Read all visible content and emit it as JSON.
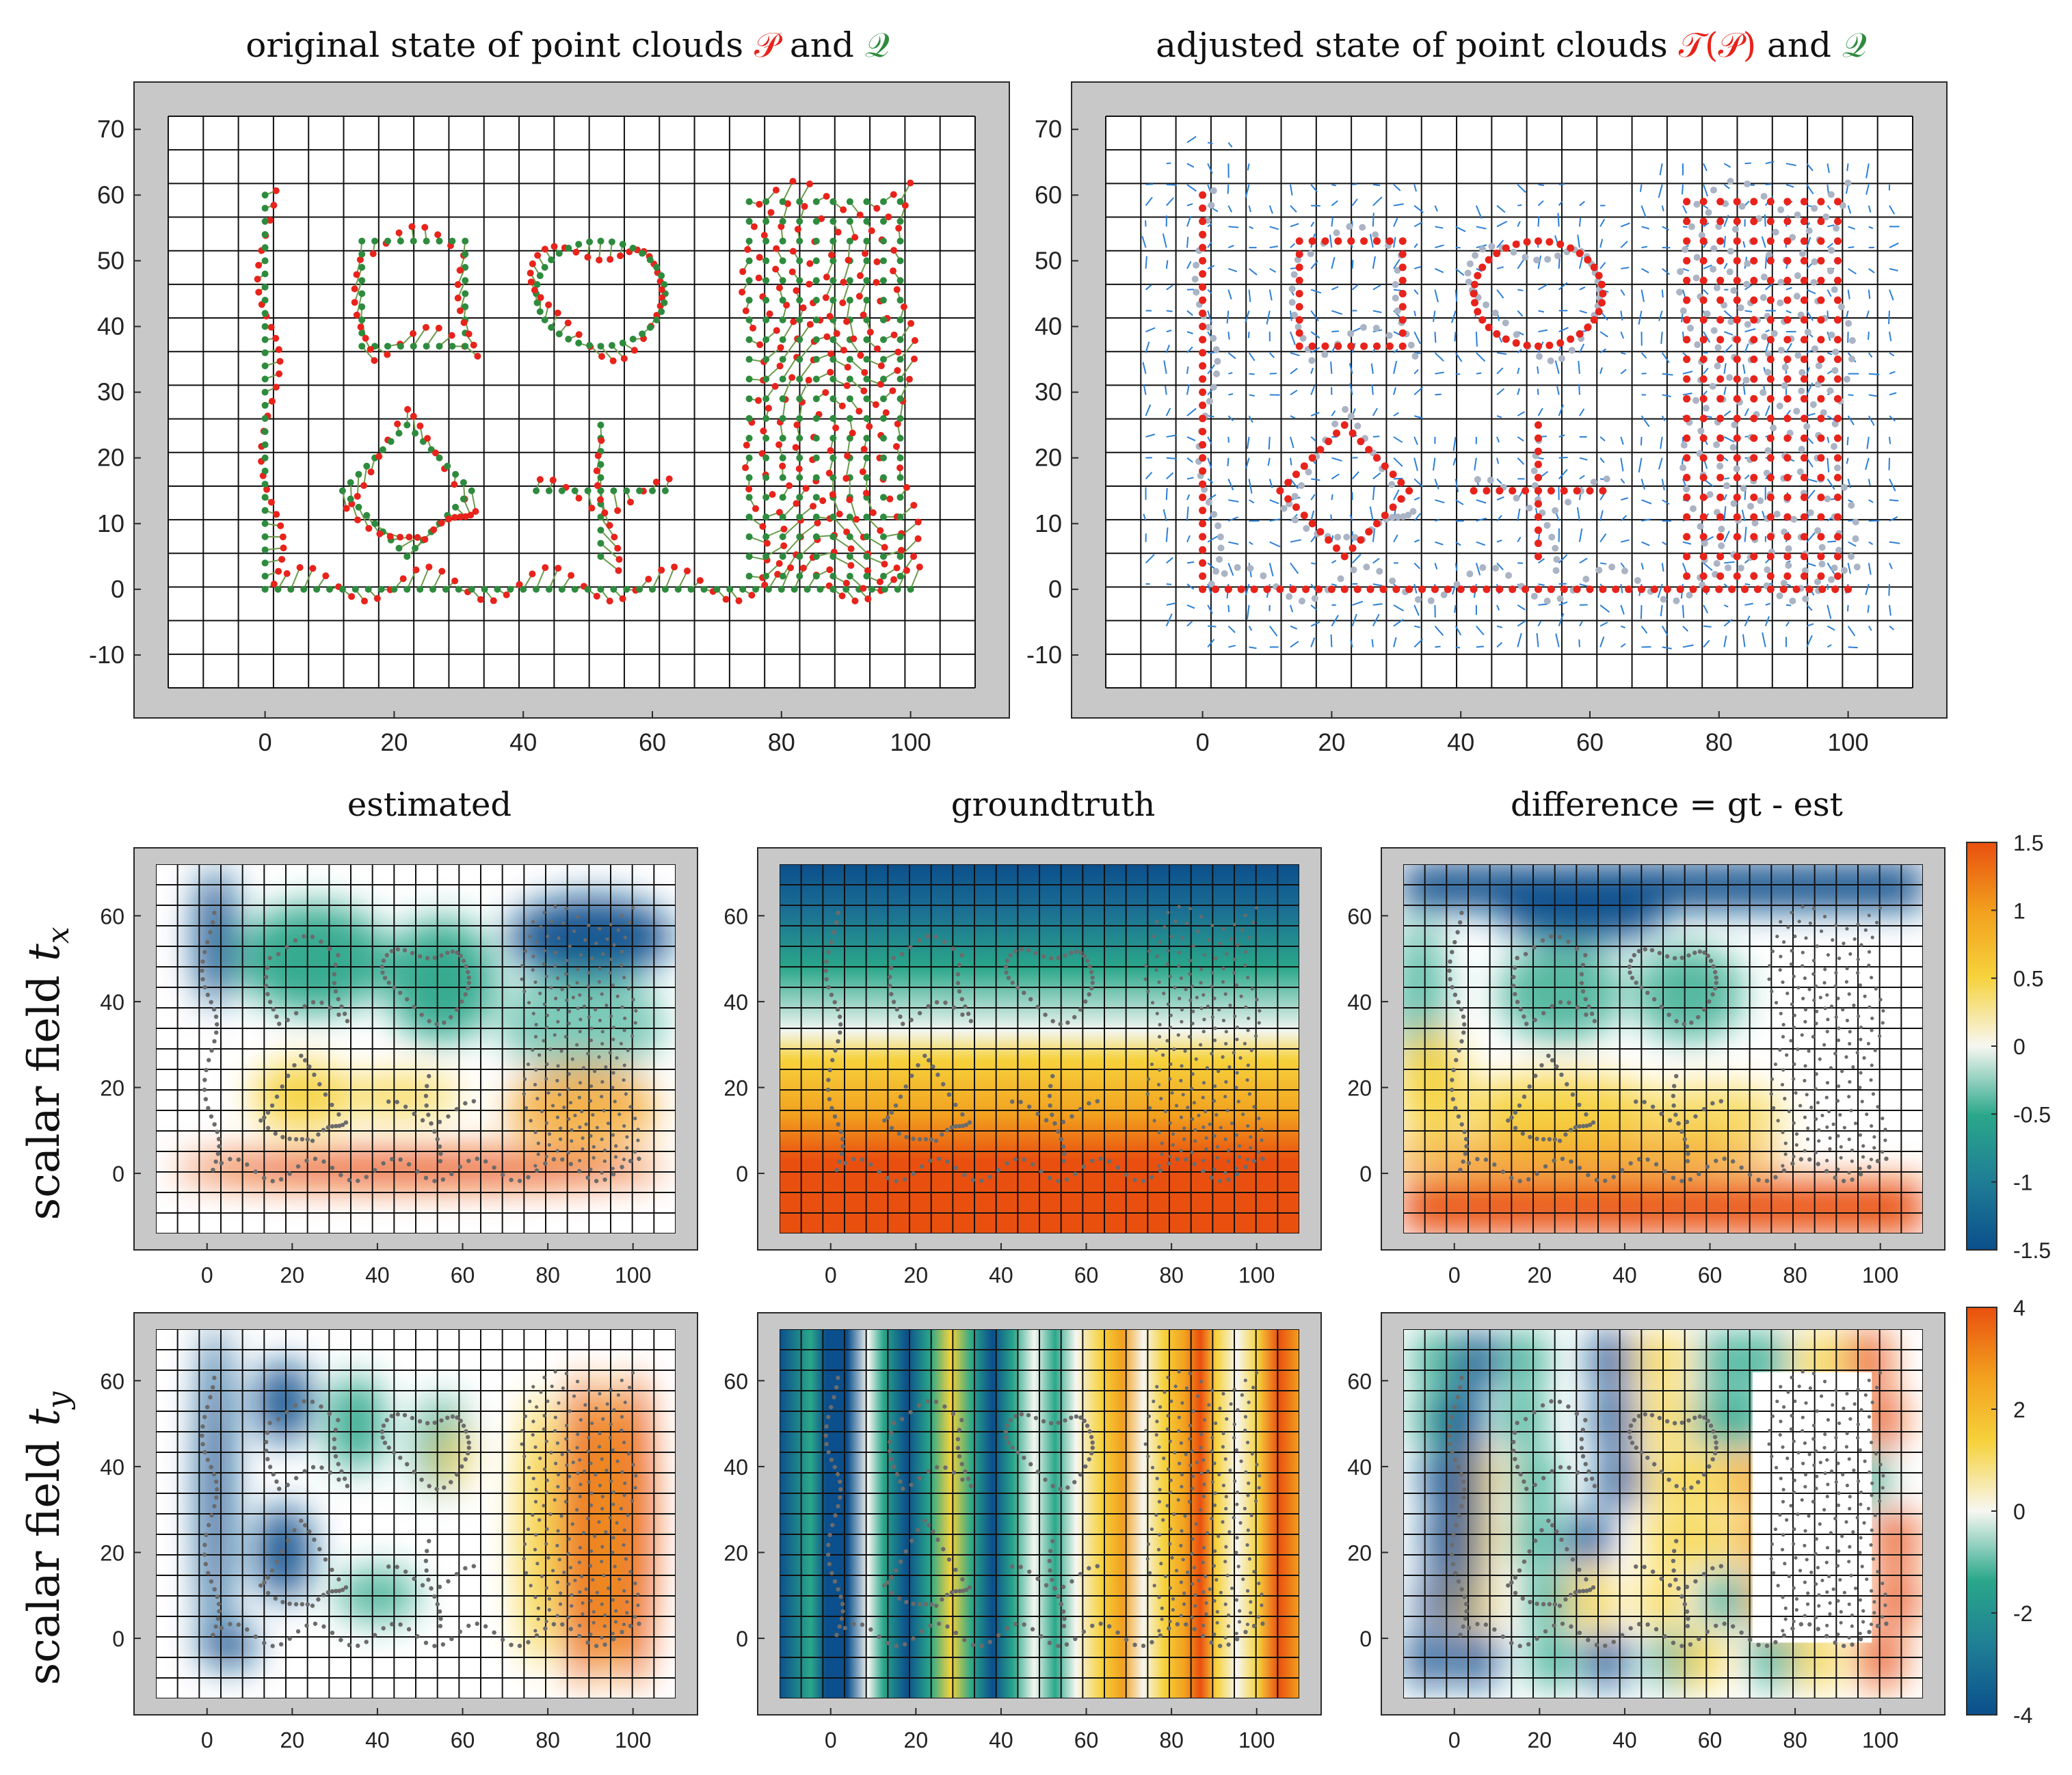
{
  "figure": {
    "top_left_title": {
      "prefix": "original state of point clouds ",
      "p": "𝒫",
      "mid": " and ",
      "q": "𝒬"
    },
    "top_right_title": {
      "prefix": "adjusted state of point clouds ",
      "tp": "𝒯(𝒫)",
      "mid": " and ",
      "q": "𝒬"
    },
    "col_titles": [
      "estimated",
      "groundtruth",
      "difference = gt - est"
    ],
    "row_labels": [
      {
        "text": "scalar field ",
        "var": "t",
        "sub": "x"
      },
      {
        "text": "scalar field ",
        "var": "t",
        "sub": "y"
      }
    ]
  },
  "chart_data": [
    {
      "id": "top-original",
      "type": "scatter",
      "xlim": [
        -15,
        110
      ],
      "ylim": [
        -15,
        72
      ],
      "xticks": [
        0,
        20,
        40,
        60,
        80,
        100
      ],
      "yticks": [
        70,
        60,
        50,
        40,
        30,
        20,
        10,
        0,
        -10
      ],
      "grid": true,
      "series": [
        {
          "color": "#e8231b",
          "marker": "dot"
        },
        {
          "color": "#2e8b3e",
          "marker": "dot"
        }
      ]
    },
    {
      "id": "top-adjusted",
      "type": "scatter",
      "xlim": [
        -15,
        110
      ],
      "ylim": [
        -15,
        72
      ],
      "xticks": [
        0,
        20,
        40,
        60,
        80,
        100
      ],
      "yticks": [
        70,
        60,
        50,
        40,
        30,
        20,
        10,
        0,
        -10
      ],
      "grid": true,
      "series": [
        {
          "color": "#e8231b",
          "marker": "dot"
        },
        {
          "color": "#aab4c4",
          "marker": "dot"
        },
        {
          "color": "#2b7fd6",
          "marker": "vector"
        }
      ]
    },
    {
      "id": "tx-heatmaps",
      "type": "heatmap",
      "xlim": [
        -12,
        110
      ],
      "ylim": [
        -14,
        72
      ],
      "xticks": [
        0,
        20,
        40,
        60,
        80,
        100
      ],
      "yticks": [
        60,
        40,
        20,
        0
      ],
      "colorbar_ticks": [
        "1.5",
        "1",
        "0.5",
        "0",
        "-0.5",
        "-1",
        "-1.5"
      ],
      "colorbar_range": [
        -1.5,
        1.5
      ]
    },
    {
      "id": "ty-heatmaps",
      "type": "heatmap",
      "xlim": [
        -12,
        110
      ],
      "ylim": [
        -14,
        72
      ],
      "xticks": [
        0,
        20,
        40,
        60,
        80,
        100
      ],
      "yticks": [
        60,
        40,
        20,
        0
      ],
      "colorbar_ticks": [
        "4",
        "2",
        "0",
        "-2",
        "-4"
      ],
      "colorbar_range": [
        -4,
        4
      ]
    }
  ]
}
